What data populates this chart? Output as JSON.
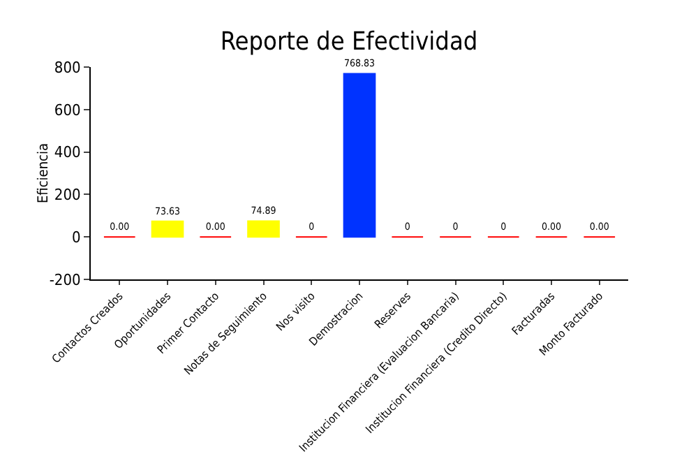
{
  "chart_data": {
    "type": "bar",
    "title": "Reporte de Efectividad",
    "ylabel": "Eficiencia",
    "categories": [
      "Contactos Creados",
      "Oportunidades",
      "Primer Contacto",
      "Notas de Seguimiento",
      "Nos visito",
      "Demostracion",
      "Reserves",
      "Institucion Financiera (Evaluacion Bancaria)",
      "Institucion Financiera (Credito Directo)",
      "Facturadas",
      "Monto Facturado"
    ],
    "values": [
      0,
      73.63,
      0,
      74.89,
      0,
      768.83,
      0,
      0,
      0,
      0,
      0
    ],
    "colors": [
      "#ff0000",
      "#ffff00",
      "#ff0000",
      "#ffff00",
      "#ff0000",
      "#0033ff",
      "#ff0000",
      "#ff0000",
      "#ff0000",
      "#ff0000",
      "#ff0000"
    ],
    "value_labels": [
      "0.00",
      "73.63",
      "0.00",
      "74.89",
      "0",
      "768.83",
      "0",
      "0",
      "0",
      "0.00",
      "0.00"
    ],
    "ylim": [
      -200,
      800
    ],
    "yticks": [
      -200,
      0,
      200,
      400,
      600,
      800
    ],
    "grid": false
  }
}
